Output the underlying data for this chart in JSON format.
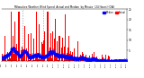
{
  "title": "Milwaukee Weather Wind Speed  Actual and Median  by Minute  (24 Hours) (Old)",
  "legend_actual": "Actual",
  "legend_median": "Median",
  "actual_color": "#ff0000",
  "median_color": "#0000ff",
  "background_color": "#ffffff",
  "grid_color": "#999999",
  "ylim": [
    0,
    25
  ],
  "xlim": [
    0,
    1440
  ],
  "ytick_values": [
    5,
    10,
    15,
    20,
    25
  ],
  "n_minutes": 1440,
  "seed": 42,
  "figwidth": 1.6,
  "figheight": 0.87,
  "dpi": 100
}
